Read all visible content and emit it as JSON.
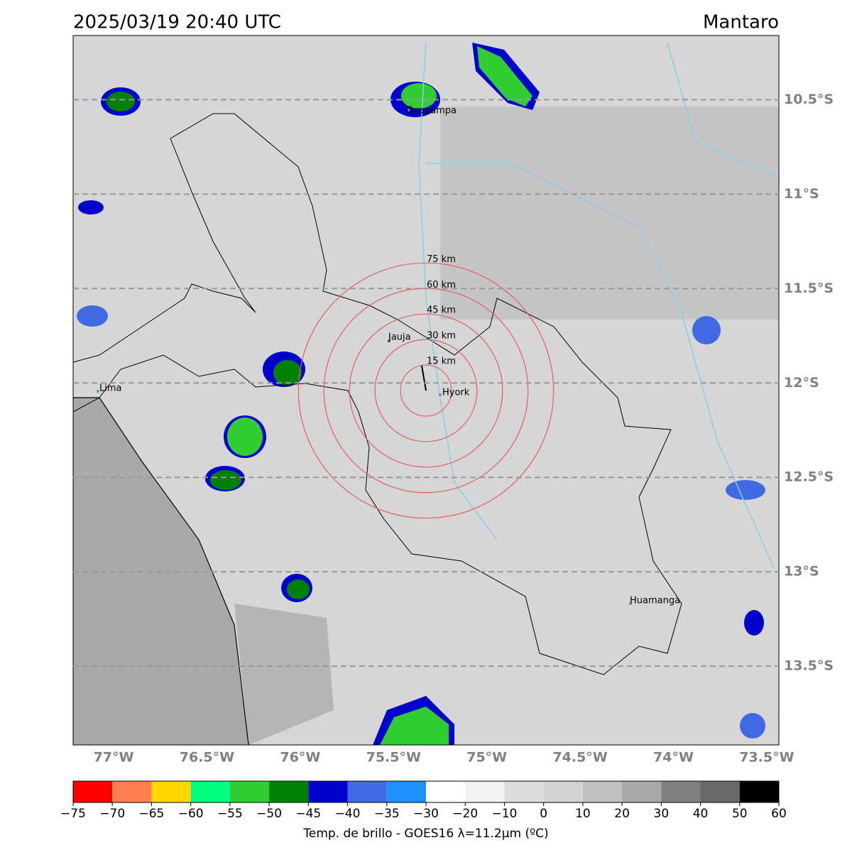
{
  "header": {
    "title": "2025/03/19 20:40 UTC",
    "region": "Mantaro"
  },
  "map": {
    "lonlim": [
      -77.217,
      -73.435
    ],
    "latlim": [
      -13.917,
      -10.16
    ],
    "lon_ticks": [
      {
        "value": -77,
        "label": "77°W"
      },
      {
        "value": -76.5,
        "label": "76.5°W"
      },
      {
        "value": -76,
        "label": "76°W"
      },
      {
        "value": -75.5,
        "label": "75.5°W"
      },
      {
        "value": -75,
        "label": "75°W"
      },
      {
        "value": -74.5,
        "label": "74.5°W"
      },
      {
        "value": -74,
        "label": "74°W"
      },
      {
        "value": -73.5,
        "label": "73.5°W"
      }
    ],
    "lat_ticks": [
      {
        "value": -10.5,
        "label": "10.5°S"
      },
      {
        "value": -11,
        "label": "11°S"
      },
      {
        "value": -11.5,
        "label": "11.5°S"
      },
      {
        "value": -12,
        "label": "12°S"
      },
      {
        "value": -12.5,
        "label": "12.5°S"
      },
      {
        "value": -13,
        "label": "13°S"
      },
      {
        "value": -13.5,
        "label": "13.5°S"
      }
    ],
    "rings": [
      {
        "value": 15,
        "label": "15 km"
      },
      {
        "value": 30,
        "label": "30 km"
      },
      {
        "value": 45,
        "label": "45 km"
      },
      {
        "value": 60,
        "label": "60 km"
      },
      {
        "value": 75,
        "label": "75 km"
      }
    ],
    "cities": [
      "Oxapampa",
      "Jauja",
      "Hyork",
      "Lima",
      "Huamanga"
    ]
  },
  "colorbar": {
    "label": "Temp. de brillo - GOES16 λ=11.2μm (ºC)",
    "bounds": [
      {
        "value": -75,
        "label": "−75"
      },
      {
        "value": -70,
        "label": "−70"
      },
      {
        "value": -65,
        "label": "−65"
      },
      {
        "value": -60,
        "label": "−60"
      },
      {
        "value": -55,
        "label": "−55"
      },
      {
        "value": -50,
        "label": "−50"
      },
      {
        "value": -45,
        "label": "−45"
      },
      {
        "value": -40,
        "label": "−40"
      },
      {
        "value": -35,
        "label": "−35"
      },
      {
        "value": -30,
        "label": "−30"
      },
      {
        "value": -20,
        "label": "−20"
      },
      {
        "value": -10,
        "label": "−10"
      },
      0,
      10,
      20,
      30,
      40,
      50,
      60
    ],
    "colors": [
      "#ff0000",
      "#ff7f50",
      "#ffd700",
      "#00ff7f",
      "#32cd32",
      "#008000",
      "#0000cd",
      "#4169e1",
      "#1e90ff",
      "#ffffff",
      "#f2f2f2",
      "#dcdcdc",
      "#d3d3d3",
      "#c0c0c0",
      "#a9a9a9",
      "#808080",
      "#696969",
      "#000000"
    ]
  }
}
